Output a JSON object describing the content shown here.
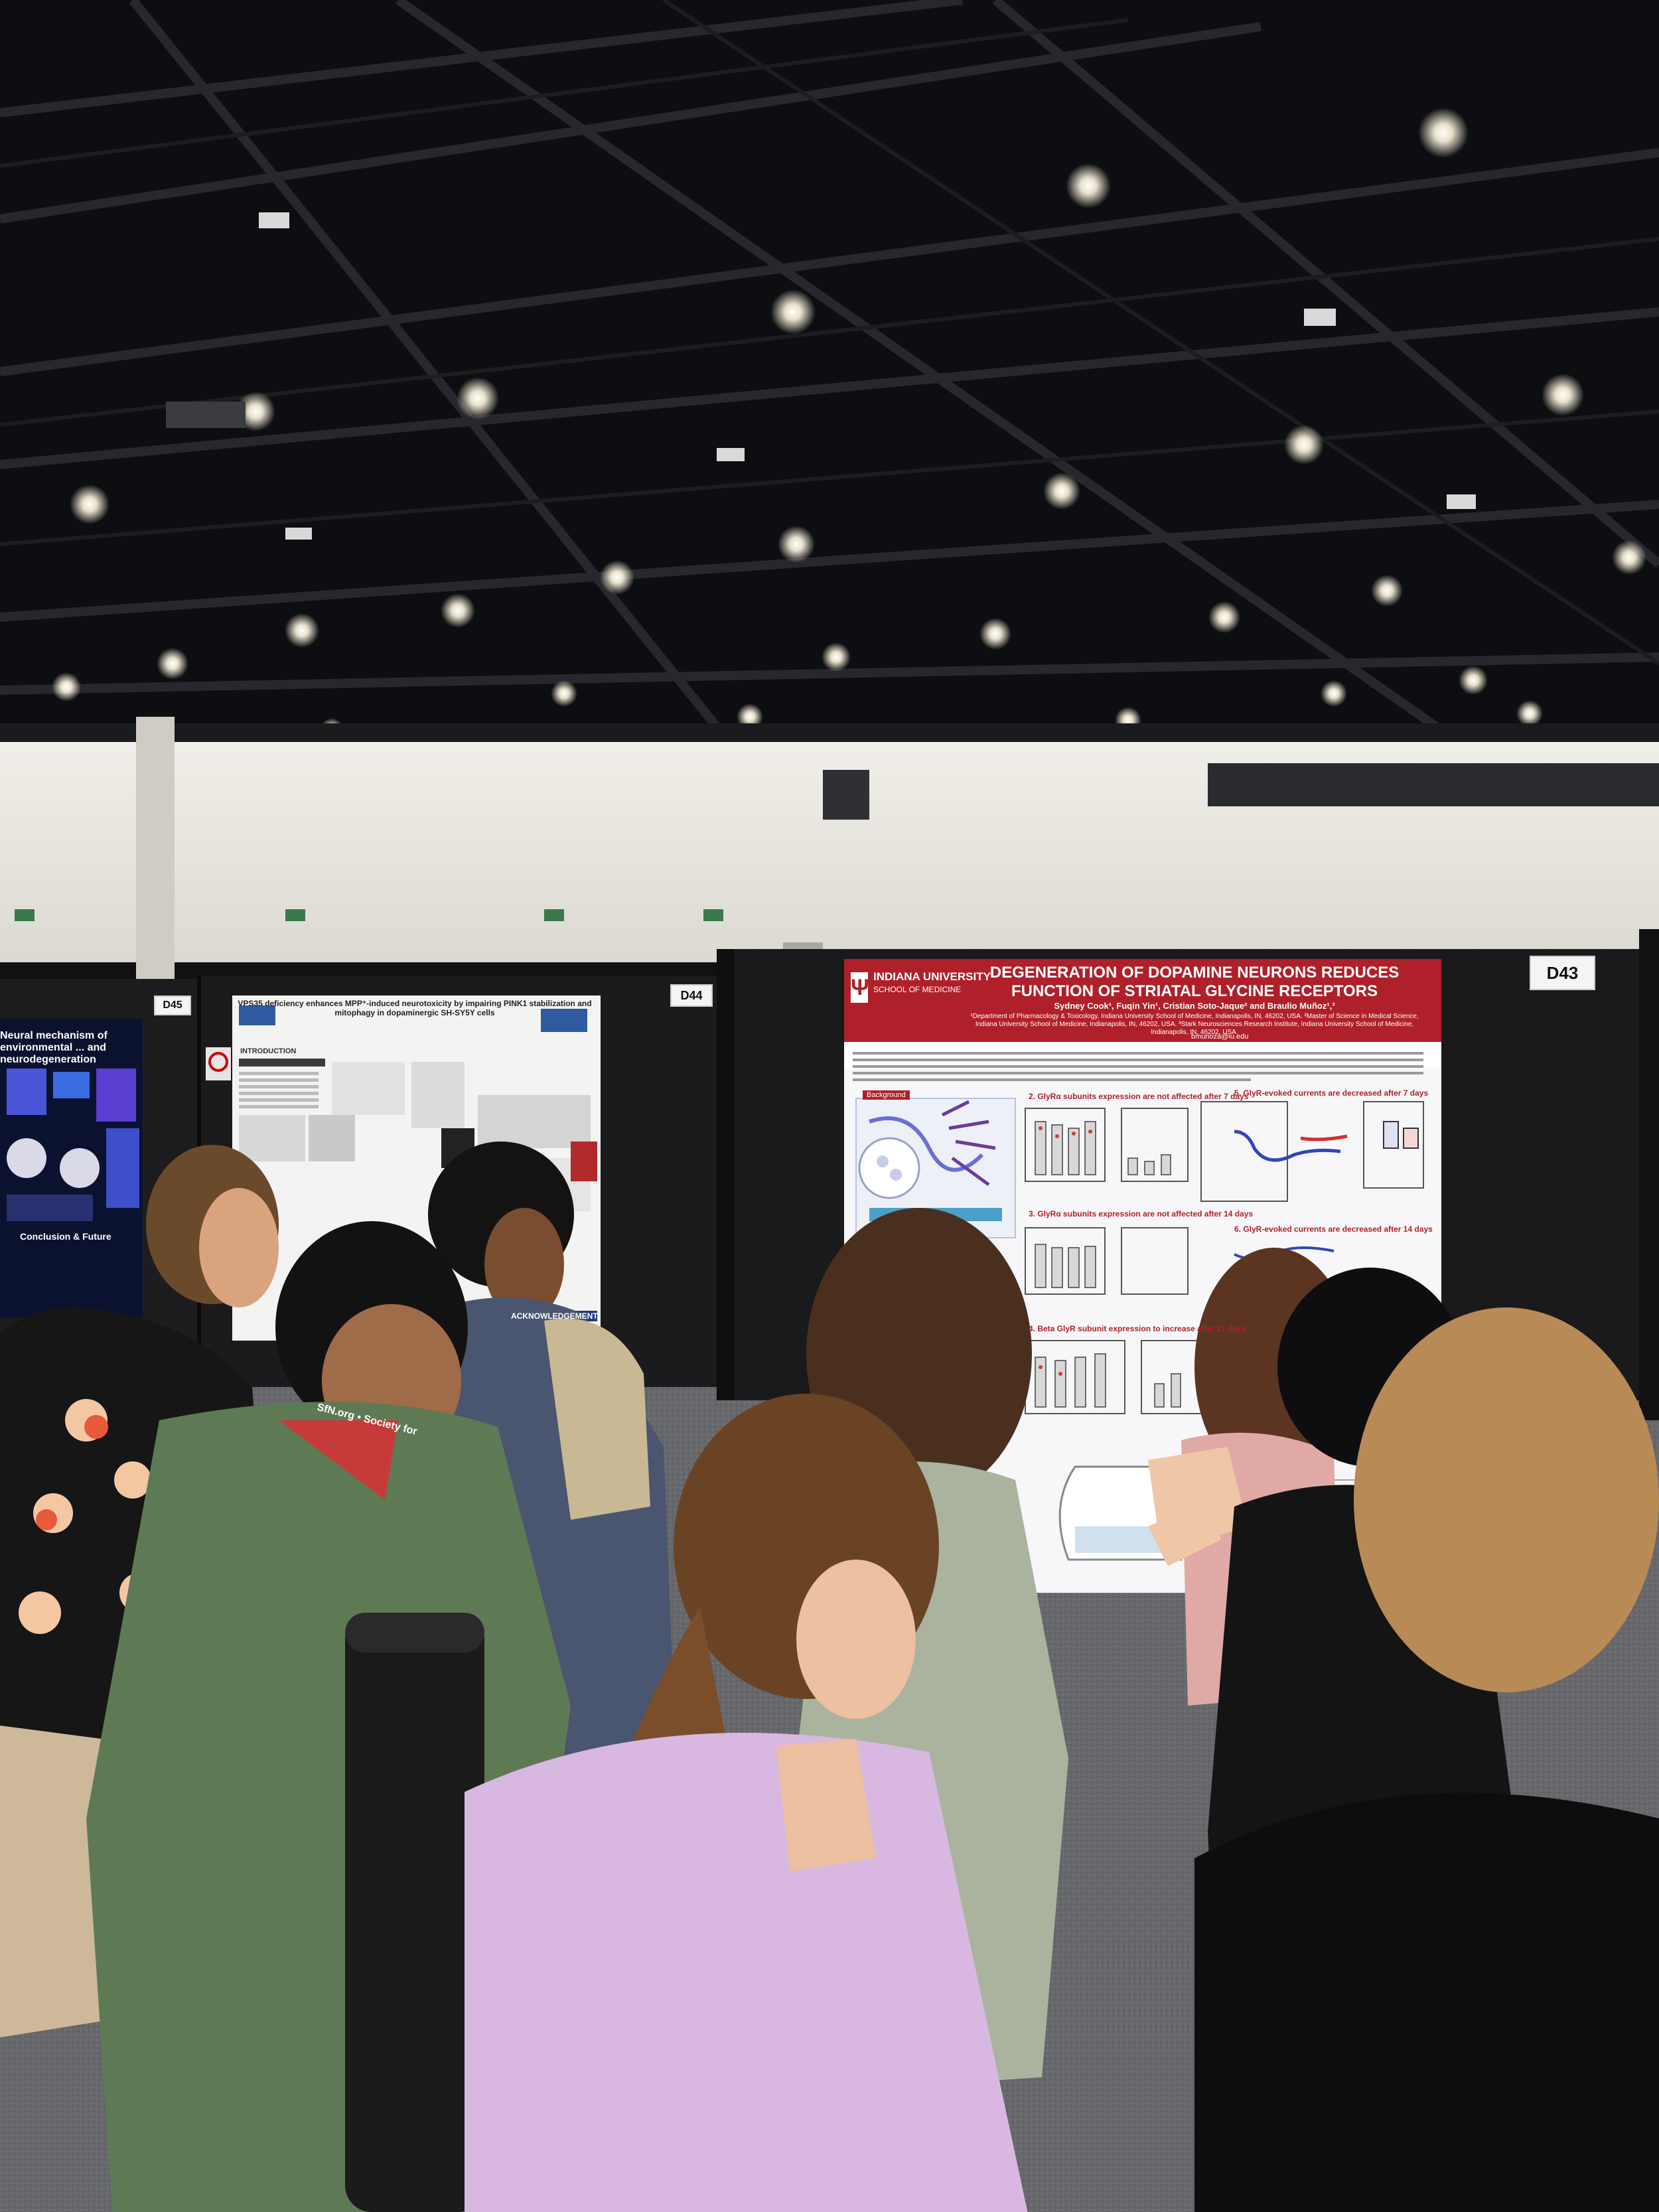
{
  "scene": {
    "description_type": "photo",
    "colors": {
      "ceiling": "#0e0f12",
      "wall": "#e8e6e0",
      "floor": "#6b6d72",
      "board": "#1b1b1c",
      "poster_accent": "#b0202a"
    }
  },
  "boards": [
    {
      "label": "D45"
    },
    {
      "label": "D44"
    },
    {
      "label": "D43"
    }
  ],
  "main_poster": {
    "institution": "INDIANA UNIVERSITY",
    "school": "SCHOOL OF MEDICINE",
    "title": "DEGENERATION OF DOPAMINE NEURONS REDUCES FUNCTION OF STRIATAL GLYCINE RECEPTORS",
    "authors": "Sydney Cook¹, Fuqin Yin¹, Cristian Soto-Jaque² and Braulio Muñoz¹,³",
    "affiliation": "¹Department of Pharmacology & Toxicology, Indiana University School of Medicine, Indianapolis, IN, 46202, USA. ²Master of Science in Medical Science, Indiana University School of Medicine, Indianapolis, IN, 46202, USA. ³Stark Neurosciences Research Institute, Indiana University School of Medicine, Indianapolis, IN, 46202, USA.",
    "email": "bmunoza@iu.edu",
    "background_heading": "Background",
    "sections": [
      "2. GlyRα subunits expression are not affected after 7 days",
      "5. GlyR-evoked currents are decreased after 7 days",
      "3. GlyRα subunits expression are not affected after 14 days",
      "6. GlyR-evoked currents are decreased after 14 days",
      "4. Beta GlyR subunit expression to increase after 21 days"
    ]
  },
  "left_poster": {
    "title": "VPS35 deficiency enhances MPP⁺-induced neurotoxicity by impairing PINK1 stabilization and mitophagy in dopaminergic SH-SY5Y cells",
    "intro_heading": "INTRODUCTION",
    "ack_heading": "ACKNOWLEDGEMENT"
  },
  "far_left_poster": {
    "title": "Neural mechanism of environmental ... and neurodegeneration",
    "conclusion": "Conclusion & Future"
  },
  "lanyard": {
    "text": "SfN.org • Society for"
  }
}
